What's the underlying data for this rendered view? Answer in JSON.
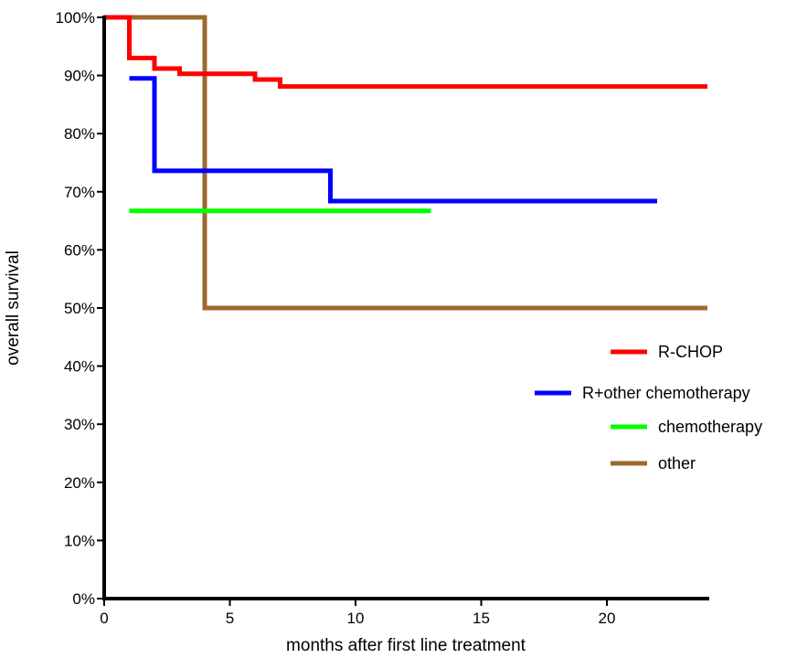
{
  "chart_data": {
    "type": "line",
    "step": true,
    "xlabel": "months after first line treatment",
    "ylabel": "overall survival",
    "xlim": [
      0,
      24
    ],
    "ylim": [
      0,
      100
    ],
    "xticks": [
      0,
      5,
      10,
      15,
      20
    ],
    "xtick_labels": [
      "0",
      "5",
      "10",
      "15",
      "20"
    ],
    "yticks": [
      0,
      10,
      20,
      30,
      40,
      50,
      60,
      70,
      80,
      90,
      100
    ],
    "ytick_labels": [
      "0%",
      "10%",
      "20%",
      "30%",
      "40%",
      "50%",
      "60%",
      "70%",
      "80%",
      "90%",
      "100%"
    ],
    "grid": false,
    "legend_position": "right",
    "series": [
      {
        "name": "R-CHOP",
        "color": "#ff0000",
        "x": [
          0,
          1,
          2,
          3,
          6,
          7,
          24
        ],
        "y": [
          100,
          93,
          91.2,
          90.3,
          89.3,
          88.1,
          88.1
        ]
      },
      {
        "name": "R+other chemotherapy",
        "color": "#0000ff",
        "x": [
          1,
          2,
          9,
          22
        ],
        "y": [
          89.5,
          73.6,
          68.4,
          68.4
        ]
      },
      {
        "name": "chemotherapy",
        "color": "#00ff00",
        "x": [
          1,
          13
        ],
        "y": [
          66.7,
          66.7
        ]
      },
      {
        "name": "other",
        "color": "#9c6a2e",
        "x": [
          1,
          4,
          24
        ],
        "y": [
          100,
          50,
          50
        ]
      }
    ]
  }
}
